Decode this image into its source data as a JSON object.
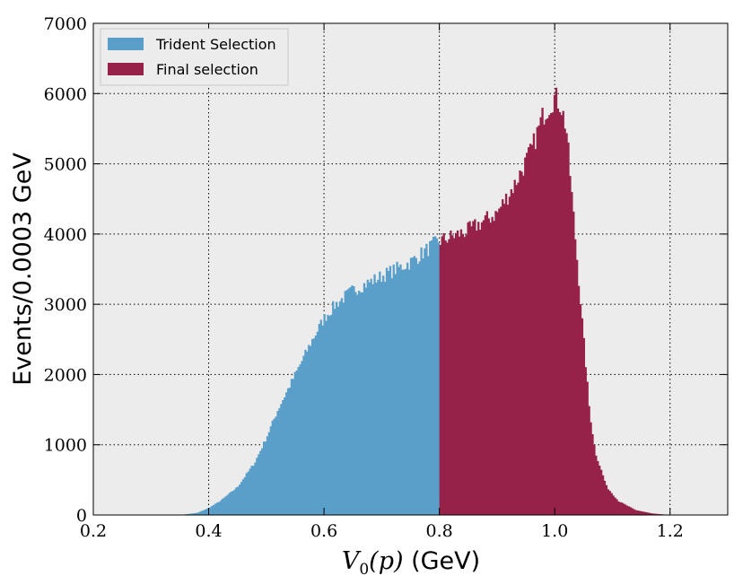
{
  "chart_data": {
    "type": "bar",
    "ylabel": "Events/0.0003 GeV",
    "xlabel_math": "V",
    "xlabel_sub": "0",
    "xlabel_arg": "(p)",
    "xlabel_unit": " (GeV)",
    "xlim": [
      0.2,
      1.3
    ],
    "ylim": [
      0,
      7000
    ],
    "xticks": [
      "0.2",
      "0.4",
      "0.6",
      "0.8",
      "1.0",
      "1.2"
    ],
    "yticks": [
      "0",
      "1000",
      "2000",
      "3000",
      "4000",
      "5000",
      "6000",
      "7000"
    ],
    "grid": true,
    "legend_position": "top-left",
    "series": [
      {
        "name": "Trident Selection",
        "color": "#5a9fca",
        "range": [
          0.2,
          0.8
        ]
      },
      {
        "name": "Final selection",
        "color": "#962249",
        "range": [
          0.8,
          1.3
        ]
      }
    ],
    "shape_points": [
      [
        0.35,
        0
      ],
      [
        0.38,
        30
      ],
      [
        0.4,
        100
      ],
      [
        0.42,
        200
      ],
      [
        0.45,
        400
      ],
      [
        0.48,
        750
      ],
      [
        0.5,
        1100
      ],
      [
        0.52,
        1500
      ],
      [
        0.55,
        2000
      ],
      [
        0.58,
        2500
      ],
      [
        0.6,
        2800
      ],
      [
        0.62,
        3000
      ],
      [
        0.65,
        3200
      ],
      [
        0.7,
        3400
      ],
      [
        0.75,
        3600
      ],
      [
        0.79,
        3850
      ],
      [
        0.8,
        3900
      ],
      [
        0.85,
        4050
      ],
      [
        0.9,
        4300
      ],
      [
        0.93,
        4700
      ],
      [
        0.96,
        5200
      ],
      [
        0.98,
        5700
      ],
      [
        1.0,
        5950
      ],
      [
        1.01,
        5850
      ],
      [
        1.02,
        5500
      ],
      [
        1.03,
        4500
      ],
      [
        1.04,
        3500
      ],
      [
        1.05,
        2500
      ],
      [
        1.06,
        1500
      ],
      [
        1.07,
        900
      ],
      [
        1.09,
        400
      ],
      [
        1.11,
        200
      ],
      [
        1.14,
        70
      ],
      [
        1.17,
        20
      ],
      [
        1.2,
        0
      ]
    ]
  }
}
